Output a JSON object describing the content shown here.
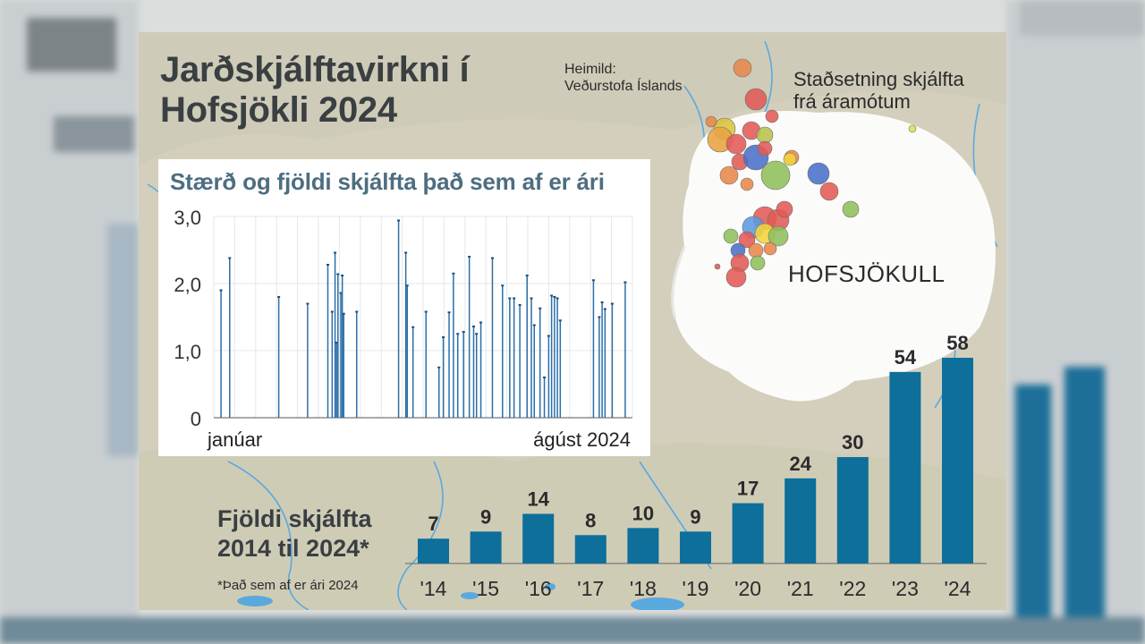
{
  "infographic": {
    "title_line1": "Jarðskjálftavirkni í",
    "title_line2": "Hofsjökli 2024",
    "source_line1": "Heimild:",
    "source_line2": "Veðurstofa Íslands",
    "map_label_line1": "Staðsetning skjálfta",
    "map_label_line2": "frá áramótum",
    "glacier_label": "HOFSJÖKULL",
    "bars_title_line1": "Fjöldi skjálfta",
    "bars_title_line2": "2014 til 2024*",
    "footnote": "*Það sem af er ári 2024"
  },
  "colors": {
    "bar": "#0d6f9a",
    "stem": "#2a6fa8",
    "inset_title": "#4d6e80",
    "land": "#d4d0bf",
    "glacier": "#fbfbfa",
    "river": "#5aa9de"
  },
  "chart_data": [
    {
      "type": "bar",
      "title": "Stærð og fjöldi skjálfta það sem af er ári",
      "subtype": "stem",
      "x_tick_labels": [
        "janúar",
        "ágúst 2024"
      ],
      "y_tick_labels": [
        "0",
        "1,0",
        "2,0",
        "3,0"
      ],
      "ylim": [
        0,
        3.0
      ],
      "grid": true,
      "x_domain_note": "day of year 2024, January 1 to late August",
      "x": [
        5,
        11,
        45,
        65,
        79,
        82,
        84,
        85,
        86,
        88,
        89,
        90,
        99,
        128,
        133,
        134,
        138,
        147,
        156,
        159,
        163,
        166,
        169,
        173,
        177,
        180,
        182,
        185,
        193,
        200,
        205,
        208,
        212,
        217,
        220,
        222,
        226,
        229,
        232,
        234,
        236,
        238,
        240,
        263,
        267,
        269,
        271,
        276,
        285
      ],
      "values": [
        1.9,
        2.38,
        1.8,
        1.7,
        2.28,
        1.58,
        2.46,
        1.12,
        2.14,
        1.86,
        2.12,
        1.55,
        1.58,
        2.94,
        2.46,
        1.97,
        1.35,
        1.58,
        0.75,
        1.2,
        1.57,
        2.15,
        1.25,
        1.28,
        2.4,
        1.36,
        1.25,
        1.42,
        2.38,
        1.97,
        1.78,
        1.78,
        1.68,
        2.12,
        1.78,
        1.38,
        1.63,
        0.6,
        1.22,
        1.82,
        1.8,
        1.78,
        1.45,
        2.05,
        1.5,
        1.72,
        1.62,
        1.7,
        2.02
      ]
    },
    {
      "type": "bar",
      "title": "Fjöldi skjálfta 2014 til 2024*",
      "categories": [
        "'14",
        "'15",
        "'16",
        "'17",
        "'18",
        "'19",
        "'20",
        "'21",
        "'22",
        "'23",
        "'24"
      ],
      "values": [
        7,
        9,
        14,
        8,
        10,
        9,
        17,
        24,
        30,
        54,
        58
      ],
      "value_labels": [
        "7",
        "9",
        "14",
        "8",
        "10",
        "9",
        "17",
        "24",
        "30",
        "54",
        "58"
      ],
      "ylim": [
        0,
        58
      ]
    }
  ]
}
